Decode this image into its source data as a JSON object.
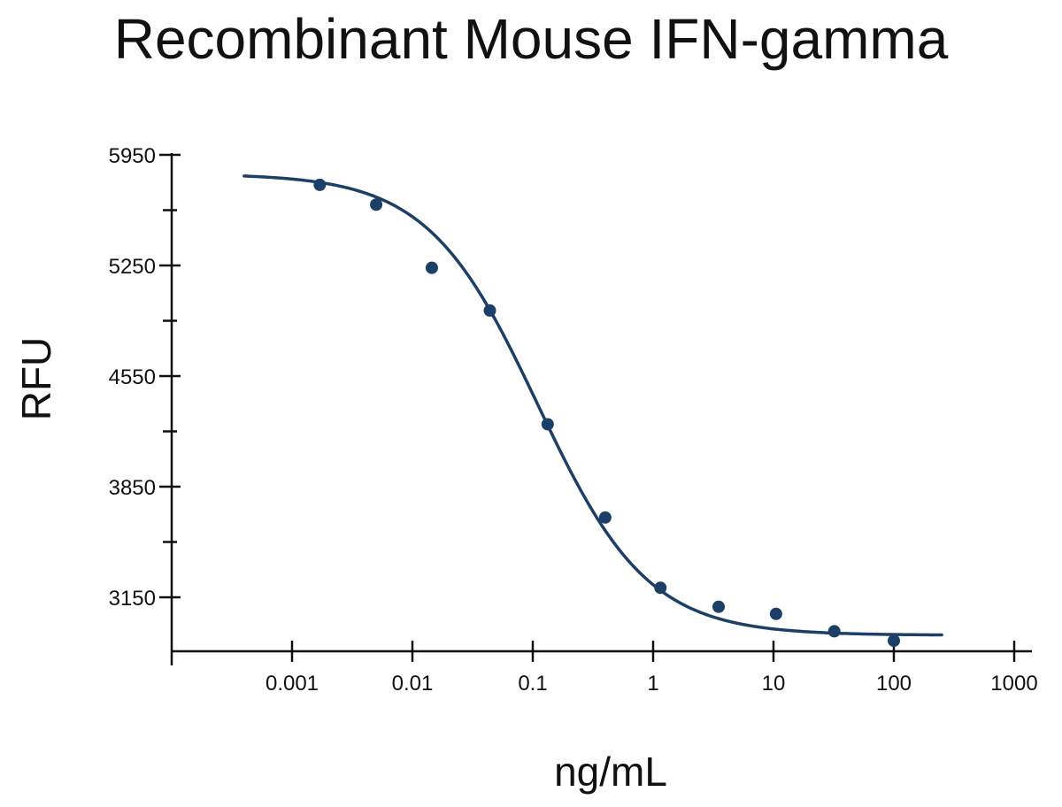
{
  "chart_data": {
    "type": "scatter",
    "title": "Recombinant Mouse IFN-gamma",
    "xlabel": "ng/mL",
    "ylabel": "RFU",
    "x_scale": "log",
    "xlim": [
      0.0001,
      1500
    ],
    "ylim": [
      2830,
      5960
    ],
    "x_tick_labels": [
      "0.001",
      "0.01",
      "0.1",
      "1",
      "10",
      "100",
      "1000"
    ],
    "x_tick_values": [
      0.001,
      0.01,
      0.1,
      1,
      10,
      100,
      1000
    ],
    "y_tick_labels": [
      "5950",
      "5250",
      "4550",
      "3850",
      "3150"
    ],
    "y_tick_values": [
      5950,
      5250,
      4550,
      3850,
      3150
    ],
    "y_minor_ticks": [
      5600,
      4900,
      4200,
      3500
    ],
    "grid": false,
    "series": [
      {
        "marker": "circle",
        "color": "#1b3f66",
        "points": [
          {
            "x": 0.0017,
            "y": 5760
          },
          {
            "x": 0.005,
            "y": 5635
          },
          {
            "x": 0.0145,
            "y": 5235
          },
          {
            "x": 0.044,
            "y": 4965
          },
          {
            "x": 0.133,
            "y": 4245
          },
          {
            "x": 0.4,
            "y": 3655
          },
          {
            "x": 1.15,
            "y": 3210
          },
          {
            "x": 3.5,
            "y": 3090
          },
          {
            "x": 10.5,
            "y": 3045
          },
          {
            "x": 32,
            "y": 2935
          },
          {
            "x": 100,
            "y": 2875
          }
        ]
      }
    ],
    "fit_curve": {
      "model": "4PL",
      "color": "#1b3f66",
      "top": 5830,
      "bottom": 2910,
      "ec50": 0.11,
      "hill": 0.95,
      "x_range": [
        0.0004,
        250
      ]
    }
  }
}
